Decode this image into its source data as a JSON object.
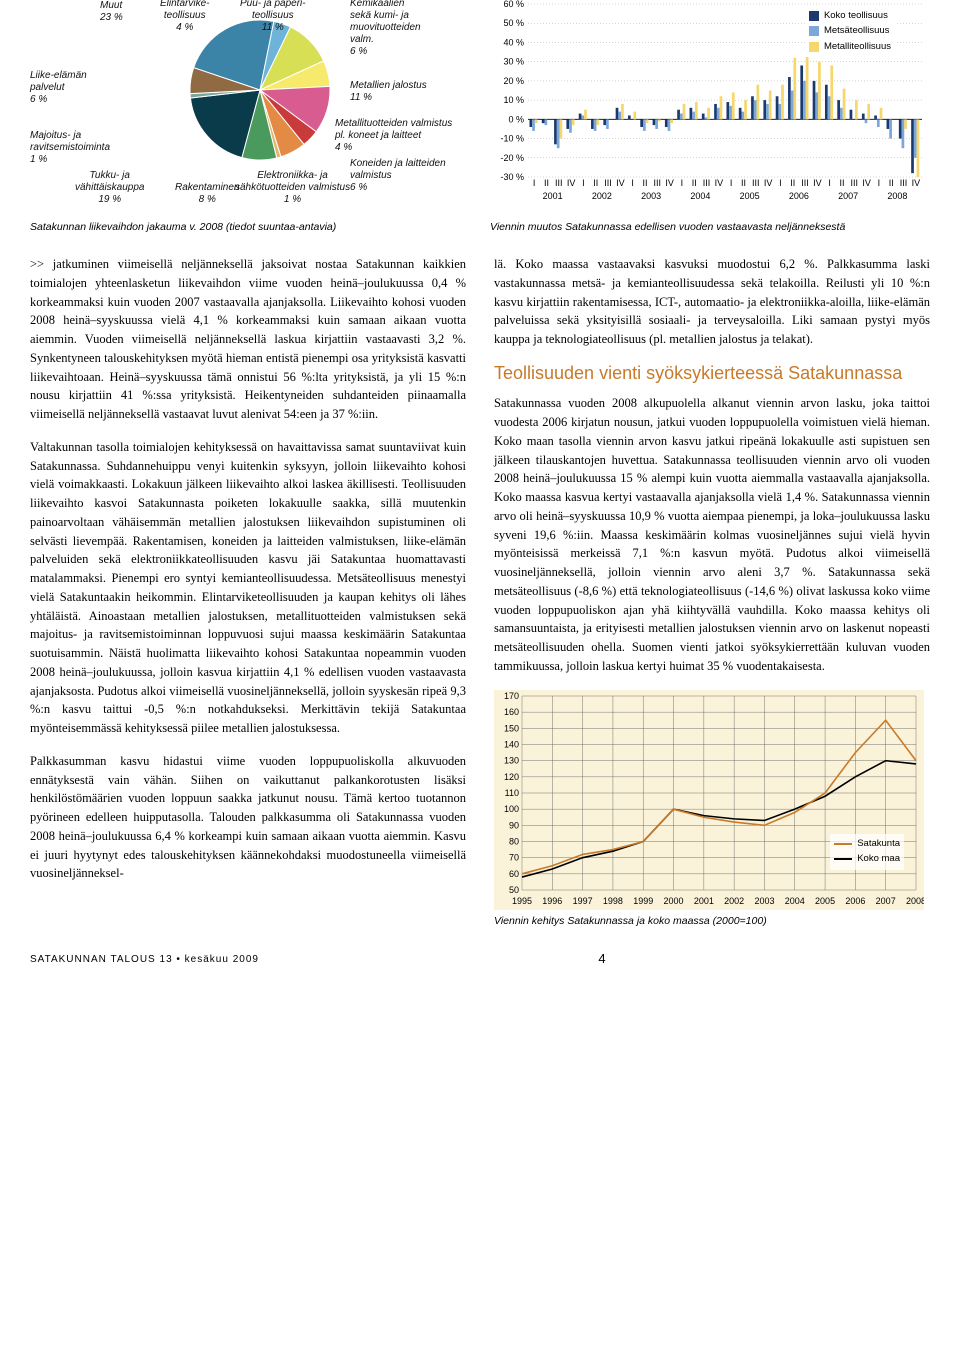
{
  "pie": {
    "caption": "Satakunnan liikevaihdon jakauma v. 2008 (tiedot suuntaa-antavia)",
    "slices": [
      {
        "label": "Muut",
        "pct": "23 %",
        "value": 23,
        "color": "#3b84a8"
      },
      {
        "label": "Elintarvike-\nteollisuus",
        "pct": "4 %",
        "value": 4,
        "color": "#6db4d8"
      },
      {
        "label": "Puu- ja paperi-\nteollisuus",
        "pct": "11 %",
        "value": 11,
        "color": "#d7e055"
      },
      {
        "label": "Kemikaalien\nsekä kumi- ja\nmuovituotteiden\nvalm.",
        "pct": "6 %",
        "value": 6,
        "color": "#f7e96b"
      },
      {
        "label": "Metallien jalostus",
        "pct": "11 %",
        "value": 11,
        "color": "#d85c90"
      },
      {
        "label": "Metallituotteiden valmistus\npl. koneet ja laitteet",
        "pct": "4 %",
        "value": 4,
        "color": "#c93a3a"
      },
      {
        "label": "Koneiden ja laitteiden\nvalmistus",
        "pct": "6 %",
        "value": 6,
        "color": "#e38b44"
      },
      {
        "label": "Elektroniikka- ja\nsähkötuotteiden valmistus",
        "pct": "1 %",
        "value": 1,
        "color": "#e0b870"
      },
      {
        "label": "Rakentaminen",
        "pct": "8 %",
        "value": 8,
        "color": "#4a9a5d"
      },
      {
        "label": "Tukku- ja\nvähittäiskauppa",
        "pct": "19 %",
        "value": 19,
        "color": "#0a3b4a"
      },
      {
        "label": "Majoitus- ja\nravitsemistoiminta",
        "pct": "1 %",
        "value": 1,
        "color": "#7aa69e"
      },
      {
        "label": "Liike-elämän\npalvelut",
        "pct": "6 %",
        "value": 6,
        "color": "#8f6a42"
      }
    ]
  },
  "bar": {
    "caption": "Viennin muutos Satakunnassa edellisen vuoden vastaavasta neljänneksestä",
    "legend": [
      {
        "name": "Koko teollisuus",
        "color": "#1a3a6e"
      },
      {
        "name": "Metsäteollisuus",
        "color": "#7da7d9"
      },
      {
        "name": "Metalliteollisuus",
        "color": "#f5d76e"
      }
    ],
    "ylim": [
      -30,
      60
    ],
    "ytick_step": 10,
    "years": [
      "2001",
      "2002",
      "2003",
      "2004",
      "2005",
      "2006",
      "2007",
      "2008"
    ],
    "quarters": [
      "I",
      "II",
      "III",
      "IV"
    ],
    "series": {
      "koko": [
        -4,
        -2,
        -13,
        -5,
        3,
        -5,
        -3,
        6,
        2,
        -4,
        -3,
        -4,
        5,
        6,
        3,
        8,
        9,
        6,
        12,
        10,
        12,
        22,
        28,
        20,
        18,
        10,
        5,
        3,
        2,
        -5,
        -10,
        -28
      ],
      "metsa": [
        -6,
        -3,
        -15,
        -7,
        2,
        -6,
        -5,
        4,
        0,
        -6,
        -5,
        -6,
        3,
        4,
        1,
        6,
        7,
        4,
        10,
        8,
        8,
        15,
        20,
        14,
        12,
        6,
        0,
        -2,
        -4,
        -10,
        -15,
        -20
      ],
      "metalli": [
        -2,
        0,
        -10,
        -3,
        5,
        -3,
        0,
        8,
        4,
        -2,
        -1,
        -2,
        8,
        9,
        6,
        12,
        14,
        10,
        18,
        15,
        18,
        32,
        44,
        30,
        28,
        16,
        10,
        8,
        6,
        0,
        -5,
        -30
      ]
    }
  },
  "body": {
    "p1": ">> jatkuminen viimeisellä neljänneksellä jaksoivat nostaa Satakunnan kaikkien toimialojen yhteenlasketun liikevaihdon viime vuoden heinä–joulukuussa 0,4 % korkeammaksi kuin vuoden 2007 vastaavalla ajanjaksolla. Liikevaihto kohosi vuoden 2008 heinä–syyskuussa vielä 4,1 % korkeammaksi kuin samaan aikaan vuotta aiemmin. Vuoden viimeisellä neljänneksellä laskua kirjattiin vastaavasti 3,2 %. Synkentyneen talouskehityksen myötä hieman entistä pienempi osa yrityksistä kasvatti liikevaihtoaan. Heinä–syyskuussa tämä onnistui 56 %:lta yrityksistä, ja yli 15 %:n nousu kirjattiin 41 %:ssa yrityksistä. Heikentyneiden suhdanteiden piinaamalla viimeisellä neljänneksellä vastaavat luvut alenivat 54:een ja 37 %:iin.",
    "p2": "Valtakunnan tasolla toimialojen kehityksessä on havaittavissa samat suuntaviivat kuin Satakunnassa. Suhdannehuippu venyi kuitenkin syksyyn, jolloin liikevaihto kohosi vielä voimakkaasti. Lokakuun jälkeen liikevaihto alkoi laskea äkillisesti. Teollisuuden liikevaihto kasvoi Satakunnasta poiketen lokakuulle saakka, sillä muutenkin painoarvoltaan vähäisemmän metallien jalostuksen liikevaihdon supistuminen oli selvästi lievempää. Rakentamisen, koneiden ja laitteiden valmistuksen, liike-elämän palveluiden sekä elektroniikkateollisuuden kasvu jäi Satakuntaa huomattavasti matalammaksi. Pienempi ero syntyi kemianteollisuudessa. Metsäteollisuus menestyi vielä Satakuntaakin heikommin. Elintarviketeollisuuden ja kaupan kehitys oli lähes yhtäläistä. Ainoastaan metallien jalostuksen, metallituotteiden valmistuksen sekä majoitus- ja ravitsemistoiminnan loppuvuosi sujui maassa keskimäärin Satakuntaa suotuisammin. Näistä huolimatta liikevaihto kohosi Satakuntaa nopeammin vuoden 2008 heinä–joulukuussa, jolloin kasvua kirjattiin 4,1 % edellisen vuoden vastaavasta ajanjaksosta. Pudotus alkoi viimeisellä vuosineljänneksellä, jolloin syyskesän ripeä 9,3 %:n kasvu taittui -0,5 %:n notkahdukseksi. Merkittävin tekijä Satakuntaa myönteisemmässä kehityksessä piilee metallien jalostuksessa.",
    "p3": "Palkkasumman kasvu hidastui viime vuoden loppupuoliskolla alkuvuoden ennätyksestä vain vähän. Siihen on vaikuttanut palkankorotusten lisäksi henkilöstömäärien vuoden loppuun saakka jatkunut nousu. Tämä kertoo tuotannon pyörineen edelleen huipputasolla. Talouden palkkasumma oli Satakunnassa vuoden 2008 heinä–joulukuussa 6,4 % korkeampi kuin samaan aikaan vuotta aiemmin. Kasvu ei juuri hyytynyt edes talouskehityksen käännekohdaksi muodostuneella viimeisellä vuosineljänneksel-",
    "p4": "lä. Koko maassa vastaavaksi kasvuksi muodostui 6,2 %. Palkkasumma laski vastakunnassa metsä- ja kemianteollisuudessa sekä telakoilla. Reilusti yli 10 %:n kasvu kirjattiin rakentamisessa, ICT-, automaatio- ja elektroniikka-aloilla, liike-elämän palveluissa sekä yksityisillä sosiaali- ja terveysaloilla. Liki samaan pystyi myös kauppa ja teknologiateollisuus (pl. metallien jalostus ja telakat).",
    "h2": "Teollisuuden vienti syöksykierteessä Satakunnassa",
    "p5": "Satakunnassa vuoden 2008 alkupuolella alkanut viennin arvon lasku, joka taittoi vuodesta 2006 kirjatun nousun, jatkui vuoden loppupuolella voimistuen vielä hieman. Koko maan tasolla viennin arvon kasvu jatkui ripeänä lokakuulle asti supistuen sen jälkeen tilauskantojen huvettua. Satakunnassa teollisuuden viennin arvo oli vuoden 2008 heinä–joulukuussa 15 % alempi kuin vuotta aiemmalla vastaavalla ajanjaksolla. Koko maassa kasvua kertyi vastaavalla ajanjaksolla vielä 1,4 %. Satakunnassa viennin arvo oli heinä–syyskuussa 10,9 % vuotta aiempaa pienempi, ja loka–joulukuussa lasku syveni 19,6 %:iin. Maassa keskimäärin kolmas vuosineljännes sujui vielä hyvin myönteisissä merkeissä 7,1 %:n kasvun myötä. Pudotus alkoi viimeisellä vuosineljänneksellä, jolloin viennin arvo aleni 3,7 %. Satakunnassa sekä metsäteollisuus (-8,6 %) että teknologiateollisuus (-14,6 %) olivat laskussa koko viime vuoden loppupuoliskon ajan yhä kiihtyvällä vauhdilla. Koko maassa kehitys oli samansuuntaista, ja erityisesti metallien jalostuksen viennin arvo on laskenut nopeasti metsäteollisuuden ohella. Suomen vienti jatkoi syöksykierrettään kuluvan vuoden tammikuussa, jolloin laskua kertyi huimat 35 % vuodentakaisesta."
  },
  "line": {
    "caption": "Viennin kehitys Satakunnassa ja koko maassa (2000=100)",
    "ylim": [
      50,
      170
    ],
    "ytick_step": 10,
    "years": [
      "1995",
      "1996",
      "1997",
      "1998",
      "1999",
      "2000",
      "2001",
      "2002",
      "2003",
      "2004",
      "2005",
      "2006",
      "2007",
      "2008"
    ],
    "legend": [
      {
        "name": "Satakunta",
        "color": "#c77a2a"
      },
      {
        "name": "Koko maa",
        "color": "#000000"
      }
    ],
    "series": {
      "satakunta": [
        60,
        65,
        72,
        75,
        80,
        100,
        95,
        92,
        90,
        98,
        110,
        135,
        155,
        130
      ],
      "kokomaa": [
        58,
        63,
        70,
        74,
        80,
        100,
        96,
        94,
        93,
        100,
        108,
        120,
        130,
        128
      ]
    }
  },
  "footer": {
    "left": "SATAKUNNAN TALOUS 13 • kesäkuu 2009",
    "page": "4"
  }
}
